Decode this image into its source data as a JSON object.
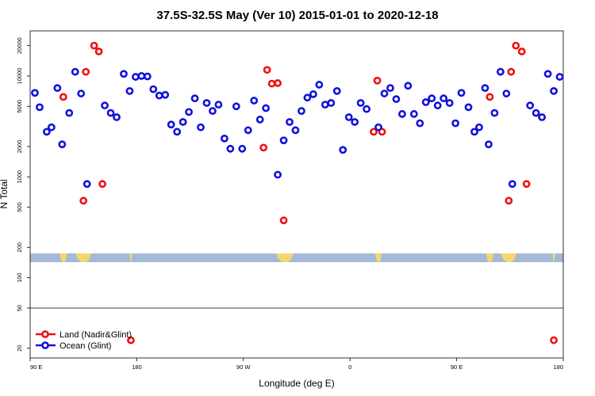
{
  "chart_data": {
    "type": "scatter",
    "title": "37.5S-32.5S May (Ver 10)   2015-01-01 to 2020-12-18",
    "xlabel": "Longitude (deg E)",
    "ylabel": "N Total",
    "x_scale": "longitude",
    "y_scale": "log",
    "xlim": [
      90,
      540
    ],
    "ylim": [
      16,
      28000
    ],
    "x_ticks": [
      {
        "value": 90,
        "label": "90 E"
      },
      {
        "value": 180,
        "label": "180"
      },
      {
        "value": 270,
        "label": "90 W"
      },
      {
        "value": 360,
        "label": "0"
      },
      {
        "value": 450,
        "label": "90 E"
      },
      {
        "value": 540,
        "label": "180"
      }
    ],
    "y_ticks": [
      20,
      50,
      100,
      200,
      500,
      1000,
      2000,
      5000,
      10000,
      20000
    ],
    "grid": false,
    "legend_position": "bottom-left",
    "reference_line_y": 50,
    "colors": {
      "land": "#ee1111",
      "ocean": "#1111dd",
      "map_ocean": "#a3b9d8",
      "map_land": "#f5d56f"
    },
    "series": [
      {
        "name": "Land (Nadir&Glint)",
        "color": "#ee1111",
        "points": [
          [
            118,
            6200
          ],
          [
            135,
            580
          ],
          [
            137,
            11000
          ],
          [
            144,
            20000
          ],
          [
            148,
            17500
          ],
          [
            151,
            850
          ],
          [
            175,
            24
          ],
          [
            287,
            1950
          ],
          [
            290,
            11500
          ],
          [
            294,
            8400
          ],
          [
            299,
            8500
          ],
          [
            304,
            370
          ],
          [
            380,
            2800
          ],
          [
            383,
            9000
          ],
          [
            387,
            2800
          ],
          [
            478,
            6200
          ],
          [
            494,
            580
          ],
          [
            496,
            11000
          ],
          [
            500,
            20000
          ],
          [
            505,
            17500
          ],
          [
            509,
            850
          ],
          [
            532,
            24
          ]
        ]
      },
      {
        "name": "Ocean (Glint)",
        "color": "#1111dd",
        "points": [
          [
            94,
            6800
          ],
          [
            98,
            4900
          ],
          [
            104,
            2800
          ],
          [
            108,
            3100
          ],
          [
            113,
            7600
          ],
          [
            117,
            2100
          ],
          [
            123,
            4300
          ],
          [
            128,
            11000
          ],
          [
            133,
            6700
          ],
          [
            138,
            850
          ],
          [
            153,
            5100
          ],
          [
            158,
            4300
          ],
          [
            163,
            3900
          ],
          [
            169,
            10500
          ],
          [
            174,
            7100
          ],
          [
            179,
            9800
          ],
          [
            184,
            10000
          ],
          [
            189,
            9900
          ],
          [
            194,
            7400
          ],
          [
            199,
            6400
          ],
          [
            204,
            6500
          ],
          [
            209,
            3300
          ],
          [
            214,
            2800
          ],
          [
            219,
            3500
          ],
          [
            224,
            4400
          ],
          [
            229,
            6000
          ],
          [
            234,
            3100
          ],
          [
            239,
            5400
          ],
          [
            244,
            4500
          ],
          [
            249,
            5200
          ],
          [
            254,
            2400
          ],
          [
            259,
            1900
          ],
          [
            264,
            5000
          ],
          [
            269,
            1900
          ],
          [
            274,
            2900
          ],
          [
            279,
            5700
          ],
          [
            284,
            3700
          ],
          [
            289,
            4800
          ],
          [
            299,
            1050
          ],
          [
            304,
            2300
          ],
          [
            309,
            3500
          ],
          [
            314,
            2900
          ],
          [
            319,
            4500
          ],
          [
            324,
            6100
          ],
          [
            329,
            6600
          ],
          [
            334,
            8200
          ],
          [
            339,
            5200
          ],
          [
            344,
            5400
          ],
          [
            349,
            7100
          ],
          [
            354,
            1850
          ],
          [
            359,
            3900
          ],
          [
            364,
            3500
          ],
          [
            369,
            5400
          ],
          [
            374,
            4700
          ],
          [
            384,
            3100
          ],
          [
            389,
            6700
          ],
          [
            394,
            7600
          ],
          [
            399,
            5900
          ],
          [
            404,
            4200
          ],
          [
            409,
            8000
          ],
          [
            414,
            4200
          ],
          [
            419,
            3400
          ],
          [
            424,
            5500
          ],
          [
            429,
            6000
          ],
          [
            434,
            5100
          ],
          [
            439,
            6000
          ],
          [
            444,
            5400
          ],
          [
            449,
            3400
          ],
          [
            454,
            6800
          ],
          [
            460,
            4900
          ],
          [
            465,
            2800
          ],
          [
            469,
            3100
          ],
          [
            474,
            7600
          ],
          [
            477,
            2100
          ],
          [
            482,
            4300
          ],
          [
            487,
            11000
          ],
          [
            492,
            6700
          ],
          [
            497,
            850
          ],
          [
            512,
            5100
          ],
          [
            517,
            4300
          ],
          [
            522,
            3900
          ],
          [
            527,
            10500
          ],
          [
            532,
            7100
          ],
          [
            537,
            9800
          ]
        ]
      }
    ]
  }
}
